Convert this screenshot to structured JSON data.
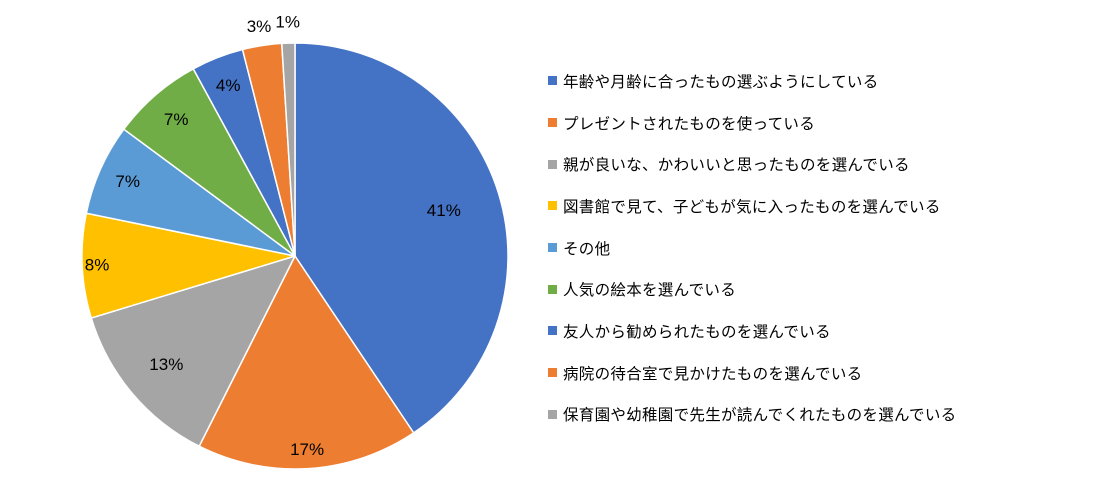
{
  "chart_data": {
    "type": "pie",
    "title": "",
    "categories": [
      "年齢や月齢に合ったもの選ぶようにしている",
      "プレゼントされたものを使っている",
      "親が良いな、かわいいと思ったものを選んでいる",
      "図書館で見て、子どもが気に入ったものを選んでいる",
      "その他",
      "人気の絵本を選んでいる",
      "友人から勧められたものを選んでいる",
      "病院の待合室で見かけたものを選んでいる",
      "保育園や幼稚園で先生が読んでくれたものを選んでいる"
    ],
    "values": [
      41,
      17,
      13,
      8,
      7,
      7,
      4,
      3,
      1
    ],
    "labels": [
      "41%",
      "17%",
      "13%",
      "8%",
      "7%",
      "7%",
      "4%",
      "3%",
      "1%"
    ],
    "colors": [
      "#4472C4",
      "#ED7D31",
      "#A5A5A5",
      "#FFC000",
      "#5B9BD5",
      "#70AD47",
      "#4472C4",
      "#ED7D31",
      "#A5A5A5"
    ],
    "legend_position": "right",
    "start_angle": "12 o'clock",
    "direction": "clockwise"
  }
}
